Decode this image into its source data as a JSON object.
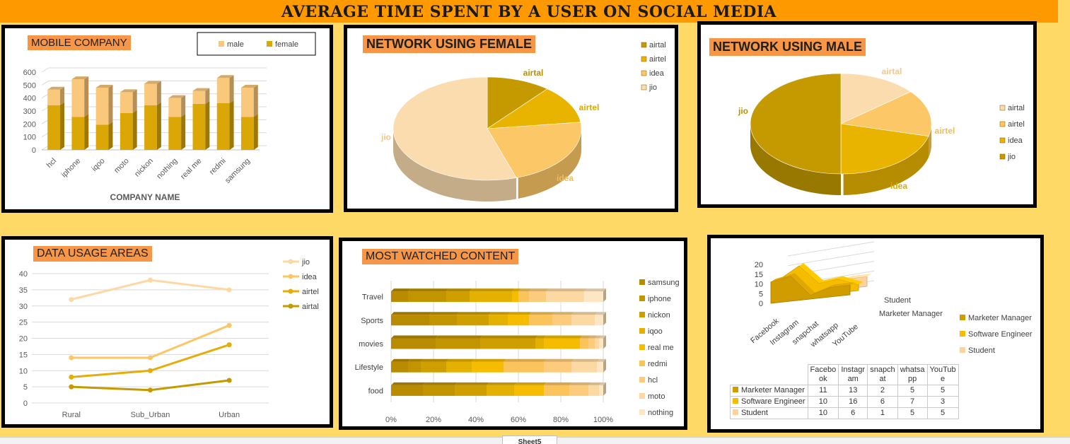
{
  "page_title": "AVERAGE TIME SPENT BY A USER ON SOCIAL MEDIA",
  "sheet_tab": "Sheet5",
  "chart_data": [
    {
      "id": "mobile",
      "type": "bar",
      "title": "MOBILE COMPANY",
      "xlabel": "COMPANY NAME",
      "ylabel": "",
      "ylim": [
        0,
        600
      ],
      "yticks": [
        0,
        100,
        200,
        300,
        400,
        500,
        600
      ],
      "categories": [
        "hcl",
        "iphone",
        "iqoo",
        "moto",
        "nickon",
        "nothing",
        "real me",
        "redmi",
        "samsung"
      ],
      "series": [
        {
          "name": "male",
          "values": [
            120,
            290,
            285,
            160,
            165,
            145,
            100,
            195,
            225
          ],
          "color": "#fac87a"
        },
        {
          "name": "female",
          "values": [
            345,
            255,
            195,
            285,
            345,
            255,
            355,
            360,
            255
          ],
          "color": "#dba706"
        }
      ],
      "stacked": true,
      "legend_position": "top-right",
      "grid": true
    },
    {
      "id": "female_network",
      "type": "pie",
      "title": "NETWORK USING FEMALE",
      "categories": [
        "airtal",
        "airtel",
        "idea",
        "jio"
      ],
      "values": [
        11,
        12,
        22,
        55
      ],
      "colors": [
        "#c49a00",
        "#e9b400",
        "#fcc766",
        "#fbdcae"
      ],
      "legend_position": "right"
    },
    {
      "id": "male_network",
      "type": "pie",
      "title": "NETWORK USING MALE",
      "categories": [
        "airtal",
        "airtel",
        "idea",
        "jio"
      ],
      "values": [
        14,
        15,
        21,
        50
      ],
      "colors": [
        "#fbdcae",
        "#fcc766",
        "#e9b400",
        "#c49a00"
      ],
      "legend_position": "right"
    },
    {
      "id": "data_usage",
      "type": "line",
      "title": "DATA USAGE AREAS",
      "ylim": [
        0,
        40
      ],
      "yticks": [
        0,
        5,
        10,
        15,
        20,
        25,
        30,
        35,
        40
      ],
      "categories": [
        "Rural",
        "Sub_Urban",
        "Urban"
      ],
      "series": [
        {
          "name": "jio",
          "values": [
            32,
            38,
            35
          ],
          "color": "#fcd9a3"
        },
        {
          "name": "idea",
          "values": [
            14,
            14,
            24
          ],
          "color": "#fbc766"
        },
        {
          "name": "airtel",
          "values": [
            8,
            10,
            18
          ],
          "color": "#e3ae0a"
        },
        {
          "name": "airtal",
          "values": [
            5,
            4,
            7
          ],
          "color": "#c49a00"
        }
      ],
      "legend_position": "top-right",
      "grid": true
    },
    {
      "id": "content",
      "type": "bar",
      "orientation": "horizontal",
      "stacked_percent": true,
      "title": "MOST WATCHED CONTENT",
      "categories": [
        "Travel",
        "Sports",
        "movies",
        "Lifestyle",
        "food"
      ],
      "xticks": [
        "0%",
        "20%",
        "40%",
        "60%",
        "80%",
        "100%"
      ],
      "series": [
        {
          "name": "samsung",
          "values": [
            8,
            18,
            21,
            8,
            15
          ],
          "color": "#b88b00"
        },
        {
          "name": "iphone",
          "values": [
            18,
            13,
            21,
            6,
            15
          ],
          "color": "#c29400"
        },
        {
          "name": "nickon",
          "values": [
            11,
            15,
            26,
            12,
            15
          ],
          "color": "#cf9f00"
        },
        {
          "name": "iqoo",
          "values": [
            20,
            9,
            4,
            12,
            13
          ],
          "color": "#e4b100"
        },
        {
          "name": "real me",
          "values": [
            3,
            10,
            17,
            15,
            14
          ],
          "color": "#f5bc00"
        },
        {
          "name": "redmi",
          "values": [
            5,
            11,
            4,
            19,
            12
          ],
          "color": "#fac45a"
        },
        {
          "name": "hcl",
          "values": [
            8,
            9,
            3,
            13,
            9
          ],
          "color": "#fccc7c"
        },
        {
          "name": "moto",
          "values": [
            18,
            11,
            2,
            12,
            5
          ],
          "color": "#fcd9a3"
        },
        {
          "name": "nothing",
          "values": [
            9,
            4,
            2,
            3,
            2
          ],
          "color": "#fde6c4"
        }
      ],
      "legend_position": "right",
      "grid": true
    },
    {
      "id": "platforms",
      "type": "area",
      "three_d": true,
      "title": "",
      "ylim": [
        0,
        20
      ],
      "yticks": [
        0,
        5,
        10,
        15,
        20
      ],
      "categories": [
        "Facebook",
        "Instagram",
        "snapchat",
        "whatsapp",
        "YouTube"
      ],
      "table_headers": [
        "Facebo ok",
        "Instagr am",
        "snapch at",
        "whatsa pp",
        "YouTub e"
      ],
      "depth_labels": [
        "Student",
        "Marketer Manager"
      ],
      "series": [
        {
          "name": "Marketer Manager",
          "values": [
            11,
            13,
            2,
            5,
            5
          ],
          "color": "#d09c00"
        },
        {
          "name": "Software Engineer",
          "values": [
            10,
            16,
            6,
            7,
            3
          ],
          "color": "#f5bc00"
        },
        {
          "name": "Student",
          "values": [
            10,
            6,
            1,
            5,
            5
          ],
          "color": "#fcd49b"
        }
      ],
      "legend_position": "right"
    }
  ]
}
